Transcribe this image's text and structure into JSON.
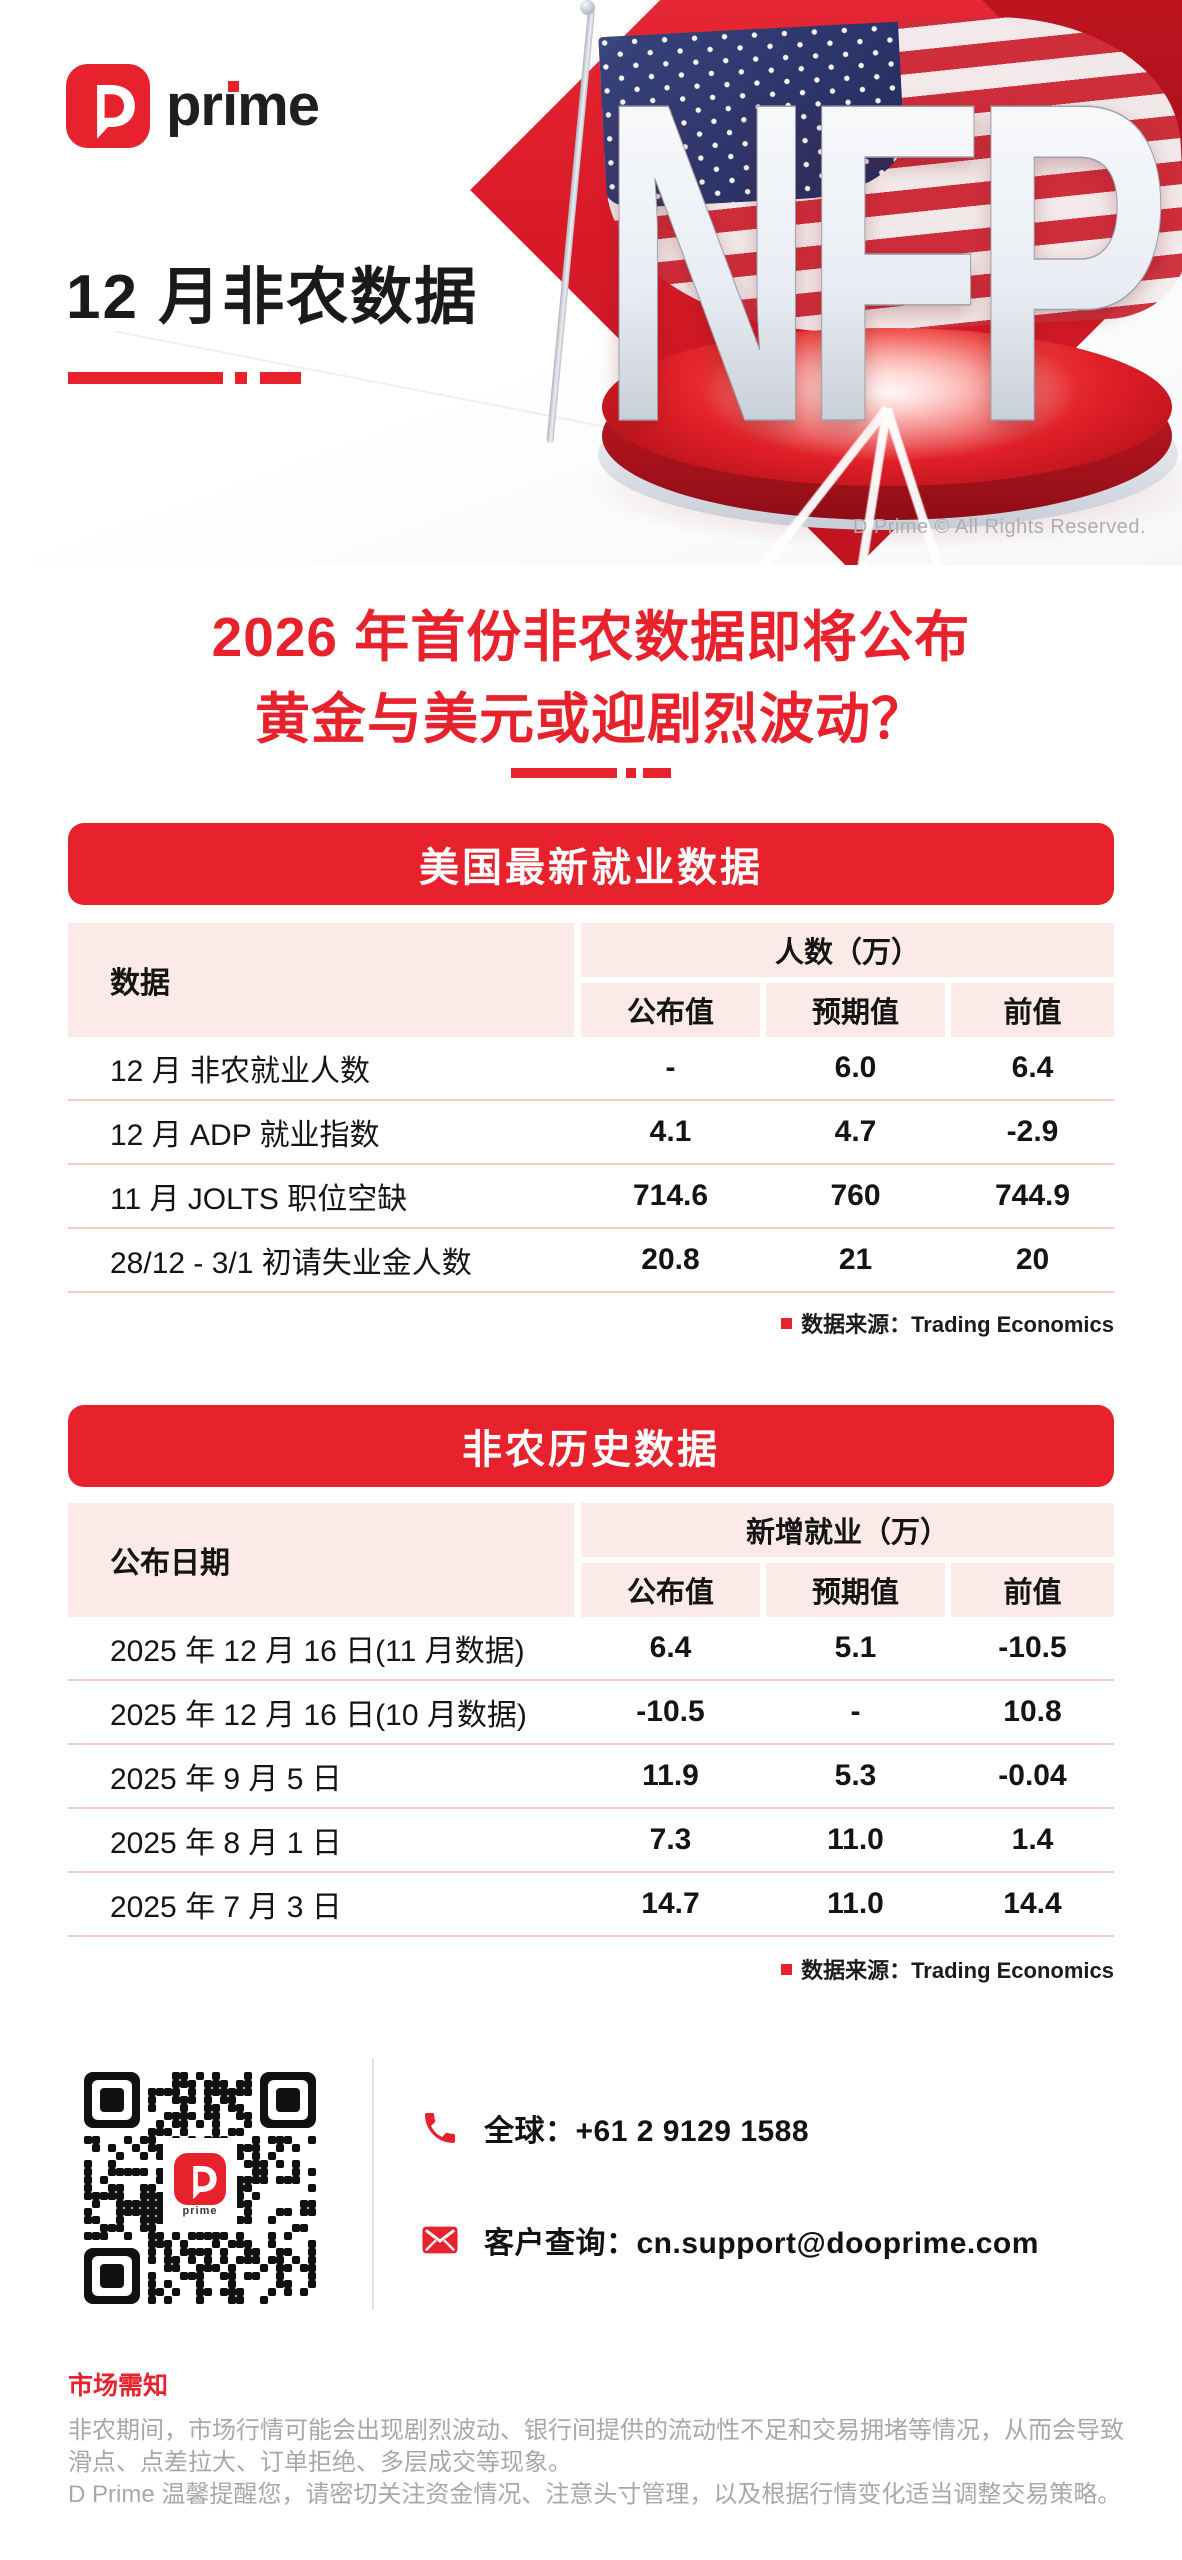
{
  "brand": {
    "wordmark_pre": "pr",
    "wordmark_i": "ı",
    "wordmark_post": "me"
  },
  "hero": {
    "title": "12 月非农数据",
    "nfp_text": "NFP",
    "copyright": "D Prime © All Rights Reserved."
  },
  "headline": {
    "line1": "2026 年首份非农数据即将公布",
    "line2": "黄金与美元或迎剧烈波动？"
  },
  "section1": {
    "banner": "美国最新就业数据",
    "header": {
      "col1": "数据",
      "group": "人数（万）",
      "sub": [
        "公布值",
        "预期值",
        "前值"
      ]
    },
    "rows": [
      {
        "label": "12 月 非农就业人数",
        "published": "-",
        "expected": "6.0",
        "previous": "6.4"
      },
      {
        "label": "12 月 ADP 就业指数",
        "published": "4.1",
        "expected": "4.7",
        "previous": "-2.9"
      },
      {
        "label": "11 月 JOLTS 职位空缺",
        "published": "714.6",
        "expected": "760",
        "previous": "744.9"
      },
      {
        "label": "28/12 - 3/1 初请失业金人数",
        "published": "20.8",
        "expected": "21",
        "previous": "20"
      }
    ],
    "source": "数据来源：Trading Economics"
  },
  "section2": {
    "banner": "非农历史数据",
    "header": {
      "col1": "公布日期",
      "group": "新增就业（万）",
      "sub": [
        "公布值",
        "预期值",
        "前值"
      ]
    },
    "rows": [
      {
        "label": "2025 年 12 月 16 日(11 月数据)",
        "published": "6.4",
        "expected": "5.1",
        "previous": "-10.5"
      },
      {
        "label": "2025 年 12 月 16 日(10 月数据)",
        "published": "-10.5",
        "expected": "-",
        "previous": "10.8"
      },
      {
        "label": "2025 年 9 月 5 日",
        "published": "11.9",
        "expected": "5.3",
        "previous": "-0.04"
      },
      {
        "label": "2025 年 8 月 1 日",
        "published": "7.3",
        "expected": "11.0",
        "previous": "1.4"
      },
      {
        "label": "2025 年 7 月 3 日",
        "published": "14.7",
        "expected": "11.0",
        "previous": "14.4"
      }
    ],
    "source": "数据来源：Trading Economics"
  },
  "contact": {
    "phone": "全球：+61 2 9129 1588",
    "email": "客户查询：cn.support@dooprime.com",
    "qr_label": "prime"
  },
  "footer": {
    "title": "市场需知",
    "line1": "非农期间，市场行情可能会出现剧烈波动、银行间提供的流动性不足和交易拥堵等情况，从而会导致",
    "line2": "滑点、点差拉大、订单拒绝、多层成交等现象。",
    "line3": "D Prime 温馨提醒您，请密切关注资金情况、注意头寸管理，以及根据行情变化适当调整交易策略。"
  },
  "colors": {
    "accent": "#E8222D",
    "header_bg": "#FCEAE8",
    "divider": "#F5CBC5"
  }
}
